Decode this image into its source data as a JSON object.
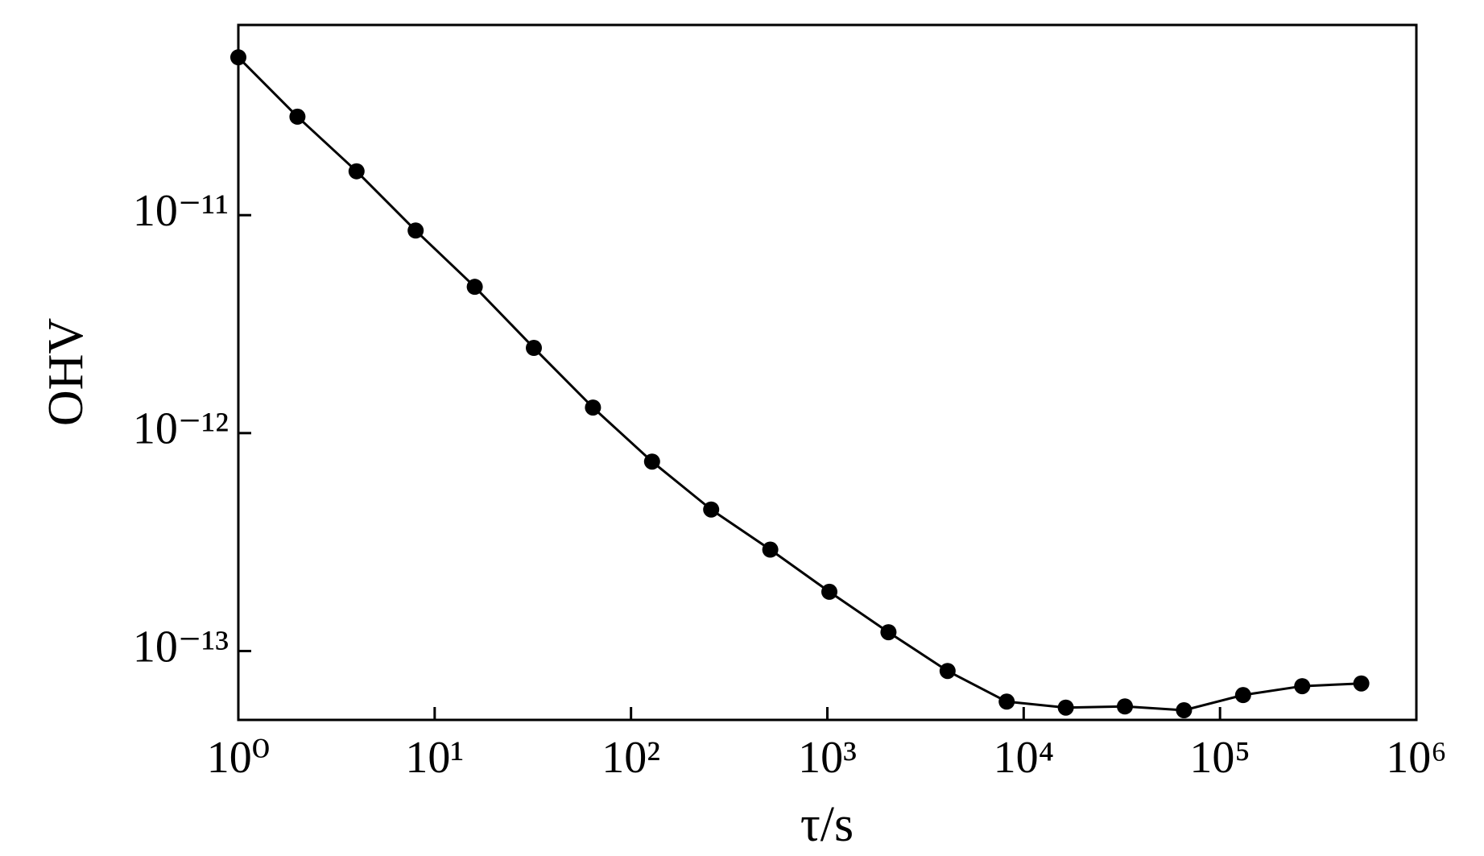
{
  "chart_data": {
    "type": "line",
    "x_label": "τ/s",
    "y_label": "OHV",
    "xscale": "log",
    "yscale": "log",
    "x": [
      1,
      2,
      4,
      8,
      16,
      32,
      64,
      128,
      256,
      512,
      1024,
      2048,
      4096,
      8192,
      16384,
      32768,
      65536,
      131072,
      262144,
      524288
    ],
    "series": [
      {
        "color": "#000000",
        "values": [
          5.3e-11,
          2.83e-11,
          1.59e-11,
          8.5e-12,
          4.69e-12,
          2.46e-12,
          1.31e-12,
          7.4e-13,
          4.46e-13,
          2.92e-13,
          1.87e-13,
          1.22e-13,
          8.1e-14,
          5.86e-14,
          5.5e-14,
          5.57e-14,
          5.35e-14,
          6.28e-14,
          6.9e-14,
          7.1e-14
        ]
      }
    ],
    "xlim": [
      1,
      1000000
    ],
    "ylim": [
      4.83e-14,
      7.46e-11
    ],
    "xticks": [
      {
        "value": 1,
        "label": "10⁰"
      },
      {
        "value": 10,
        "label": "10¹"
      },
      {
        "value": 100,
        "label": "10²"
      },
      {
        "value": 1000,
        "label": "10³"
      },
      {
        "value": 10000,
        "label": "10⁴"
      },
      {
        "value": 100000,
        "label": "10⁵"
      },
      {
        "value": 1000000,
        "label": "10⁶"
      }
    ],
    "yticks": [
      {
        "value": 1e-11,
        "label": "10⁻¹¹"
      },
      {
        "value": 1e-12,
        "label": "10⁻¹²"
      },
      {
        "value": 1e-13,
        "label": "10⁻¹³"
      }
    ],
    "grid": false
  }
}
